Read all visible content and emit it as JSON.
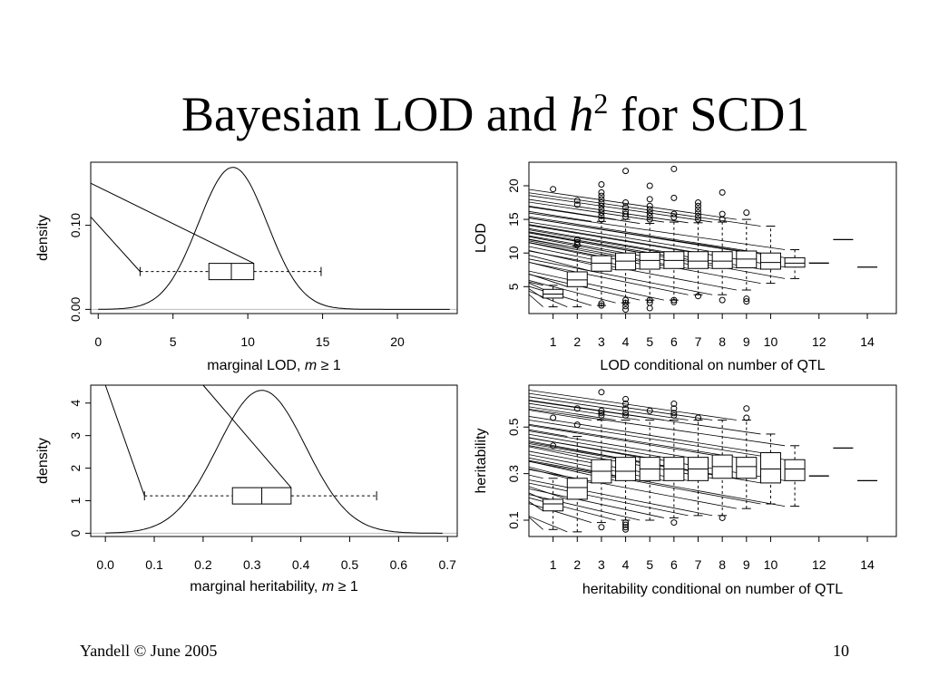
{
  "slide": {
    "title_pre": "Bayesian LOD and ",
    "title_h": "h",
    "title_sup": "2",
    "title_post": " for SCD1",
    "footer_left": "Yandell © June 2005",
    "page_number": "10"
  },
  "chart_data": [
    {
      "id": "lod_density",
      "type": "area",
      "xlabel_pre": "marginal LOD, ",
      "xlabel_var": "m",
      "xlabel_post": " ≥ 1",
      "ylabel": "density",
      "xlim": [
        -0.5,
        24
      ],
      "ylim": [
        -0.005,
        0.175
      ],
      "xticks": [
        0,
        5,
        10,
        15,
        20
      ],
      "yticks": [
        0.0,
        0.1
      ],
      "ytick_labels": [
        "0.00",
        "0.10"
      ],
      "density_mean": 9.0,
      "density_sd": 2.3,
      "density_range": [
        0,
        23.5
      ],
      "box": {
        "whisker_low": 2.8,
        "q1": 7.4,
        "median": 8.9,
        "q3": 10.4,
        "whisker_high": 14.9,
        "y": 0.045
      },
      "connector_lines": [
        {
          "from": [
            -0.5,
            0.11
          ],
          "to": [
            2.8,
            0.045
          ]
        },
        {
          "from": [
            -0.5,
            0.15
          ],
          "to": [
            10.4,
            0.045
          ]
        }
      ]
    },
    {
      "id": "lod_conditional",
      "type": "box",
      "xlabel": "LOD conditional on number of QTL",
      "ylabel": "LOD",
      "xlim": [
        0,
        15.2
      ],
      "ylim": [
        1,
        23.5
      ],
      "xticks": [
        1,
        2,
        3,
        4,
        5,
        6,
        7,
        8,
        9,
        10,
        12,
        14
      ],
      "yticks": [
        5,
        10,
        15,
        20
      ],
      "boxes": [
        {
          "x": 1,
          "wl": 2.0,
          "q1": 3.3,
          "med": 3.9,
          "q3": 4.6,
          "wh": 5.2,
          "out": [
            19.5
          ]
        },
        {
          "x": 2,
          "wl": 2.0,
          "q1": 5.0,
          "med": 6.0,
          "q3": 7.2,
          "wh": 11.0,
          "out": [
            11.2,
            11.6,
            12.0,
            17.2,
            17.8
          ]
        },
        {
          "x": 3,
          "wl": 2.2,
          "q1": 7.3,
          "med": 8.5,
          "q3": 9.6,
          "wh": 14.7,
          "out": [
            2.2,
            2.5,
            15.0,
            15.5,
            16.0,
            16.5,
            17.0,
            17.5,
            18.0,
            18.5,
            19.0,
            20.2
          ]
        },
        {
          "x": 4,
          "wl": 2.6,
          "q1": 7.5,
          "med": 8.8,
          "q3": 10.0,
          "wh": 15.0,
          "out": [
            1.6,
            2.1,
            2.6,
            3.0,
            15.4,
            15.8,
            16.2,
            16.8,
            17.5,
            22.2
          ]
        },
        {
          "x": 5,
          "wl": 3.0,
          "q1": 7.6,
          "med": 8.9,
          "q3": 10.1,
          "wh": 14.4,
          "out": [
            1.8,
            2.6,
            3.0,
            15.0,
            15.5,
            16.0,
            16.5,
            17.0,
            18.0,
            20.0
          ]
        },
        {
          "x": 6,
          "wl": 3.0,
          "q1": 7.7,
          "med": 8.9,
          "q3": 10.2,
          "wh": 14.6,
          "out": [
            2.7,
            3.0,
            15.3,
            15.8,
            18.2,
            22.5
          ]
        },
        {
          "x": 7,
          "wl": 3.8,
          "q1": 7.7,
          "med": 8.8,
          "q3": 10.2,
          "wh": 14.5,
          "out": [
            3.6,
            15.0,
            15.5,
            16.0,
            16.5,
            17.0,
            17.5
          ]
        },
        {
          "x": 8,
          "wl": 3.8,
          "q1": 7.7,
          "med": 8.8,
          "q3": 10.2,
          "wh": 14.6,
          "out": [
            3.0,
            15.0,
            15.8,
            19.0
          ]
        },
        {
          "x": 9,
          "wl": 4.5,
          "q1": 7.8,
          "med": 9.1,
          "q3": 10.3,
          "wh": 15.0,
          "out": [
            2.8,
            3.2,
            16.0
          ]
        },
        {
          "x": 10,
          "wl": 5.5,
          "q1": 7.6,
          "med": 8.6,
          "q3": 10.0,
          "wh": 14.0,
          "out": []
        },
        {
          "x": 11,
          "wl": 6.2,
          "q1": 7.9,
          "med": 8.5,
          "q3": 9.3,
          "wh": 10.5,
          "out": []
        },
        {
          "x": 12,
          "wl": 8.5,
          "q1": 8.5,
          "med": 8.5,
          "q3": 8.5,
          "wh": 8.5,
          "out": []
        },
        {
          "x": 13,
          "wl": 12.0,
          "q1": 12.0,
          "med": 12.0,
          "q3": 12.0,
          "wh": 12.0,
          "out": []
        },
        {
          "x": 14,
          "wl": 7.9,
          "q1": 7.9,
          "med": 7.9,
          "q3": 7.9,
          "wh": 7.9,
          "out": []
        }
      ]
    },
    {
      "id": "h2_density",
      "type": "area",
      "xlabel_pre": "marginal heritability, ",
      "xlabel_var": "m",
      "xlabel_post": " ≥ 1",
      "ylabel": "density",
      "xlim": [
        -0.03,
        0.72
      ],
      "ylim": [
        -0.1,
        4.55
      ],
      "xticks": [
        0.0,
        0.1,
        0.2,
        0.3,
        0.4,
        0.5,
        0.6,
        0.7
      ],
      "xtick_labels": [
        "0.0",
        "0.1",
        "0.2",
        "0.3",
        "0.4",
        "0.5",
        "0.6",
        "0.7"
      ],
      "yticks": [
        0,
        1,
        2,
        3,
        4
      ],
      "density_mean": 0.32,
      "density_sd": 0.09,
      "density_range": [
        0,
        0.69
      ],
      "box": {
        "whisker_low": 0.08,
        "q1": 0.26,
        "median": 0.32,
        "q3": 0.38,
        "whisker_high": 0.555,
        "y": 1.15
      },
      "connector_lines": [
        {
          "from": [
            0.0,
            4.6
          ],
          "to": [
            0.08,
            1.15
          ]
        },
        {
          "from": [
            0.2,
            4.6
          ],
          "to": [
            0.38,
            1.15
          ]
        }
      ]
    },
    {
      "id": "h2_conditional",
      "type": "box",
      "xlabel": "heritability conditional on number of QTL",
      "ylabel": "heritability",
      "xlim": [
        0,
        15.2
      ],
      "ylim": [
        0.03,
        0.68
      ],
      "xticks": [
        1,
        2,
        3,
        4,
        5,
        6,
        7,
        8,
        9,
        10,
        12,
        14
      ],
      "yticks": [
        0.1,
        0.3,
        0.5
      ],
      "ytick_labels": [
        "0.1",
        "0.3",
        "0.5"
      ],
      "boxes": [
        {
          "x": 1,
          "wl": 0.06,
          "q1": 0.14,
          "med": 0.17,
          "q3": 0.19,
          "wh": 0.28,
          "out": [
            0.42,
            0.54
          ]
        },
        {
          "x": 2,
          "wl": 0.05,
          "q1": 0.19,
          "med": 0.24,
          "q3": 0.28,
          "wh": 0.46,
          "out": [
            0.51,
            0.58
          ]
        },
        {
          "x": 3,
          "wl": 0.09,
          "q1": 0.26,
          "med": 0.31,
          "q3": 0.36,
          "wh": 0.53,
          "out": [
            0.07,
            0.55,
            0.56,
            0.57,
            0.65
          ]
        },
        {
          "x": 4,
          "wl": 0.1,
          "q1": 0.27,
          "med": 0.31,
          "q3": 0.37,
          "wh": 0.53,
          "out": [
            0.06,
            0.07,
            0.08,
            0.09,
            0.55,
            0.56,
            0.58,
            0.6,
            0.62
          ]
        },
        {
          "x": 5,
          "wl": 0.1,
          "q1": 0.27,
          "med": 0.32,
          "q3": 0.37,
          "wh": 0.53,
          "out": [
            0.57
          ]
        },
        {
          "x": 6,
          "wl": 0.11,
          "q1": 0.27,
          "med": 0.32,
          "q3": 0.37,
          "wh": 0.53,
          "out": [
            0.09,
            0.55,
            0.56,
            0.58,
            0.6
          ]
        },
        {
          "x": 7,
          "wl": 0.12,
          "q1": 0.27,
          "med": 0.32,
          "q3": 0.37,
          "wh": 0.53,
          "out": [
            0.54
          ]
        },
        {
          "x": 8,
          "wl": 0.12,
          "q1": 0.28,
          "med": 0.33,
          "q3": 0.38,
          "wh": 0.53,
          "out": [
            0.11
          ]
        },
        {
          "x": 9,
          "wl": 0.15,
          "q1": 0.28,
          "med": 0.33,
          "q3": 0.37,
          "wh": 0.53,
          "out": [
            0.54,
            0.58
          ]
        },
        {
          "x": 10,
          "wl": 0.17,
          "q1": 0.26,
          "med": 0.32,
          "q3": 0.39,
          "wh": 0.47,
          "out": []
        },
        {
          "x": 11,
          "wl": 0.16,
          "q1": 0.27,
          "med": 0.32,
          "q3": 0.36,
          "wh": 0.42,
          "out": []
        },
        {
          "x": 12,
          "wl": 0.29,
          "q1": 0.29,
          "med": 0.29,
          "q3": 0.29,
          "wh": 0.29,
          "out": []
        },
        {
          "x": 13,
          "wl": 0.41,
          "q1": 0.41,
          "med": 0.41,
          "q3": 0.41,
          "wh": 0.41,
          "out": []
        },
        {
          "x": 14,
          "wl": 0.27,
          "q1": 0.27,
          "med": 0.27,
          "q3": 0.27,
          "wh": 0.27,
          "out": []
        }
      ]
    }
  ]
}
